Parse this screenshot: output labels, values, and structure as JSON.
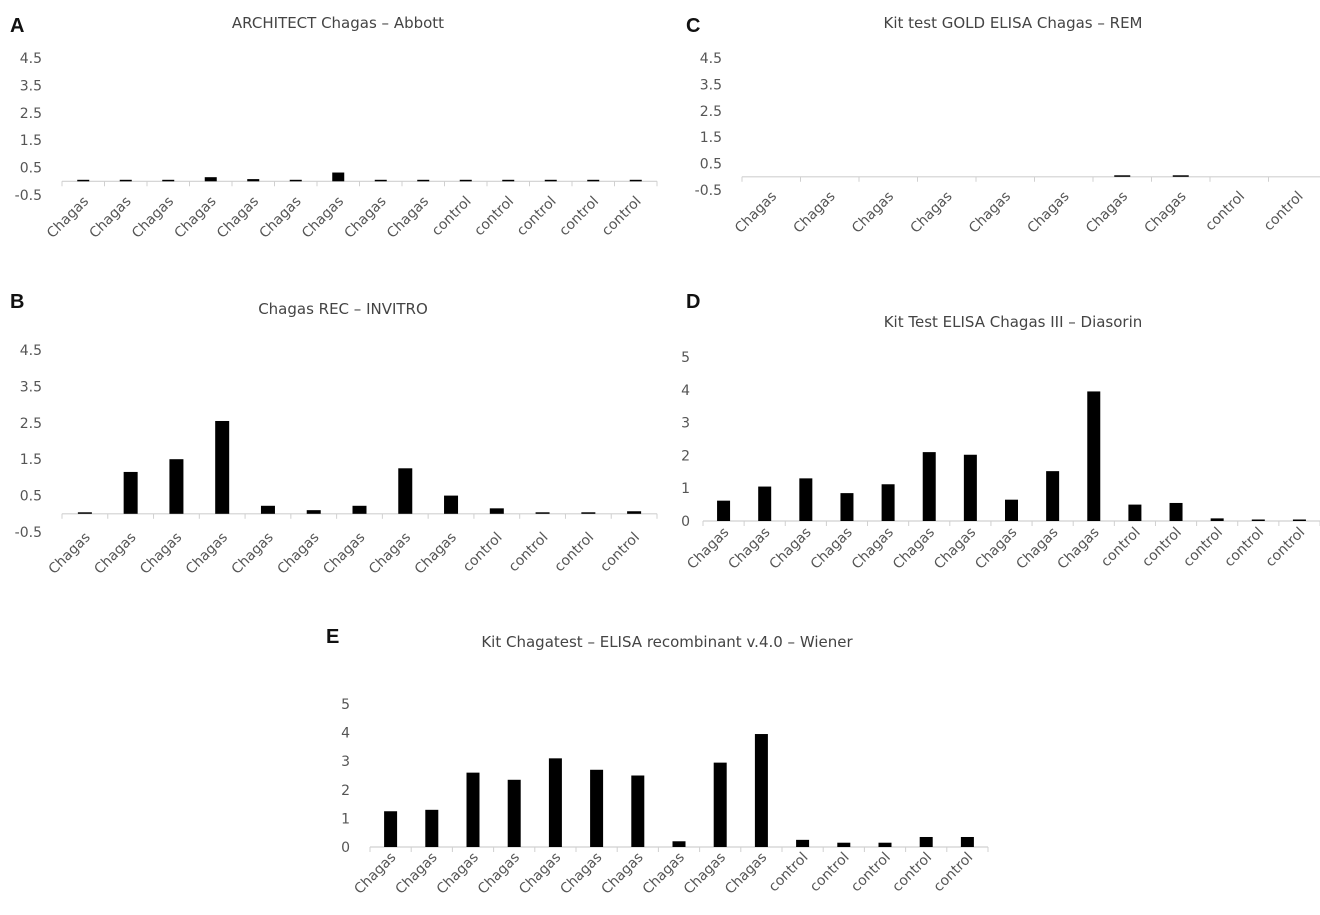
{
  "figure": {
    "panels": [
      "A",
      "B",
      "C",
      "D",
      "E"
    ]
  },
  "chart_data": [
    {
      "id": "A",
      "type": "bar",
      "title": "ARCHITECT Chagas – Abbott",
      "categories": [
        "Chagas",
        "Chagas",
        "Chagas",
        "Chagas",
        "Chagas",
        "Chagas",
        "Chagas",
        "Chagas",
        "Chagas",
        "control",
        "control",
        "control",
        "control",
        "control"
      ],
      "values": [
        0.05,
        0.02,
        0.02,
        0.15,
        0.08,
        0.02,
        0.32,
        0.02,
        0.02,
        0.02,
        0.02,
        0.02,
        0.02,
        0.02
      ],
      "yticks": [
        4.5,
        3.5,
        2.5,
        1.5,
        0.5,
        -0.5
      ],
      "ylim": [
        -0.5,
        4.5
      ],
      "xlabel": "",
      "ylabel": "",
      "grid": false
    },
    {
      "id": "B",
      "type": "bar",
      "title": "Chagas REC – INVITRO",
      "categories": [
        "Chagas",
        "Chagas",
        "Chagas",
        "Chagas",
        "Chagas",
        "Chagas",
        "Chagas",
        "Chagas",
        "Chagas",
        "control",
        "control",
        "control",
        "control"
      ],
      "values": [
        0.02,
        1.15,
        1.5,
        2.55,
        0.22,
        0.1,
        0.22,
        1.25,
        0.5,
        0.15,
        0.02,
        0.02,
        0.07
      ],
      "yticks": [
        4.5,
        3.5,
        2.5,
        1.5,
        0.5,
        -0.5
      ],
      "ylim": [
        -0.5,
        4.5
      ],
      "xlabel": "",
      "ylabel": "",
      "grid": false
    },
    {
      "id": "C",
      "type": "bar",
      "title": "Kit test GOLD ELISA Chagas – REM",
      "categories": [
        "Chagas",
        "Chagas",
        "Chagas",
        "Chagas",
        "Chagas",
        "Chagas",
        "Chagas",
        "Chagas",
        "control",
        "control"
      ],
      "values": [
        0,
        0,
        0,
        0,
        0,
        0,
        0.05,
        0.05,
        0,
        0
      ],
      "yticks": [
        4.5,
        3.5,
        2.5,
        1.5,
        0.5,
        -0.5
      ],
      "ylim": [
        -0.5,
        4.5
      ],
      "xlabel": "",
      "ylabel": "",
      "grid": false
    },
    {
      "id": "D",
      "type": "bar",
      "title": "Kit Test ELISA Chagas III –  Diasorin",
      "categories": [
        "Chagas",
        "Chagas",
        "Chagas",
        "Chagas",
        "Chagas",
        "Chagas",
        "Chagas",
        "Chagas",
        "Chagas",
        "Chagas",
        "control",
        "control",
        "control",
        "control",
        "control"
      ],
      "values": [
        0.62,
        1.05,
        1.3,
        0.85,
        1.12,
        2.1,
        2.02,
        0.65,
        1.52,
        3.95,
        0.5,
        0.55,
        0.08,
        0.04,
        0.04
      ],
      "yticks": [
        5,
        4,
        3,
        2,
        1,
        0
      ],
      "ylim": [
        0,
        5
      ],
      "xlabel": "",
      "ylabel": "",
      "grid": false
    },
    {
      "id": "E",
      "type": "bar",
      "title": "Kit Chagatest – ELISA recombinant v.4.0 – Wiener",
      "categories": [
        "Chagas",
        "Chagas",
        "Chagas",
        "Chagas",
        "Chagas",
        "Chagas",
        "Chagas",
        "Chagas",
        "Chagas",
        "Chagas",
        "control",
        "control",
        "control",
        "control",
        "control"
      ],
      "values": [
        1.25,
        1.3,
        2.6,
        2.35,
        3.1,
        2.7,
        2.5,
        0.2,
        2.95,
        3.95,
        0.25,
        0.15,
        0.15,
        0.35,
        0.35
      ],
      "yticks": [
        5,
        4,
        3,
        2,
        1,
        0
      ],
      "ylim": [
        0,
        5
      ],
      "xlabel": "",
      "ylabel": "",
      "grid": false
    }
  ]
}
